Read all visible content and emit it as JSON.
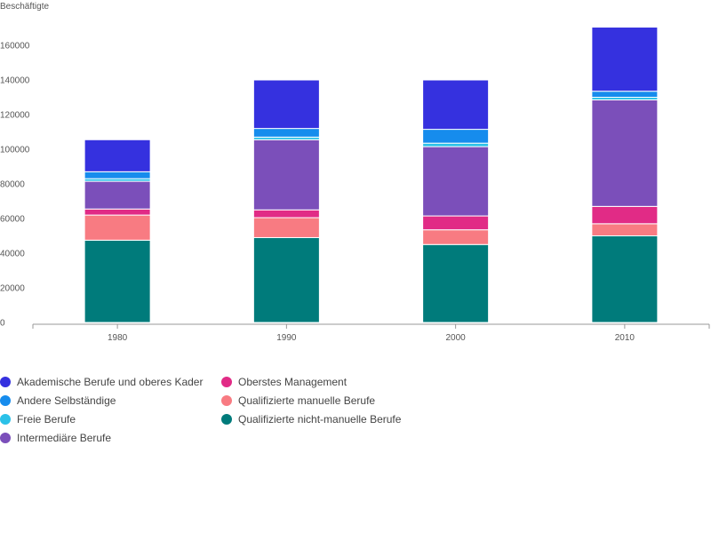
{
  "chart_data": {
    "type": "bar",
    "stacked": true,
    "ylabel": "Beschäftigte",
    "xlabel": "",
    "ylim": [
      0,
      180000
    ],
    "yticks": [
      0,
      20000,
      40000,
      60000,
      80000,
      100000,
      120000,
      140000,
      160000
    ],
    "categories": [
      "1980",
      "1990",
      "2000",
      "2010"
    ],
    "series": [
      {
        "name": "Qualifizierte nicht-manuelle Berufe",
        "color": "#007b7b",
        "values": [
          47500,
          49000,
          45000,
          50000
        ]
      },
      {
        "name": "Qualifizierte manuelle Berufe",
        "color": "#f87b82",
        "values": [
          14500,
          11500,
          8500,
          7000
        ]
      },
      {
        "name": "Oberstes Management",
        "color": "#e12b86",
        "values": [
          3500,
          4500,
          8000,
          10000
        ]
      },
      {
        "name": "Intermediäre Berufe",
        "color": "#7b4fba",
        "values": [
          16000,
          40500,
          40000,
          61500
        ]
      },
      {
        "name": "Freie Berufe",
        "color": "#2bc1e8",
        "values": [
          1500,
          1500,
          2000,
          1500
        ]
      },
      {
        "name": "Andere Selbständige",
        "color": "#168ced",
        "values": [
          4000,
          5000,
          8000,
          3500
        ]
      },
      {
        "name": "Akademische Berufe und oberes Kader",
        "color": "#3531df",
        "values": [
          18500,
          28000,
          28500,
          37000
        ]
      }
    ],
    "legend_placement": "bottom",
    "grid": false
  },
  "legend": {
    "left_column": [
      "Akademische Berufe und oberes Kader",
      "Andere Selbständige",
      "Freie Berufe",
      "Intermediäre Berufe"
    ],
    "right_column": [
      "Oberstes Management",
      "Qualifizierte manuelle Berufe",
      "Qualifizierte nicht-manuelle Berufe"
    ]
  }
}
